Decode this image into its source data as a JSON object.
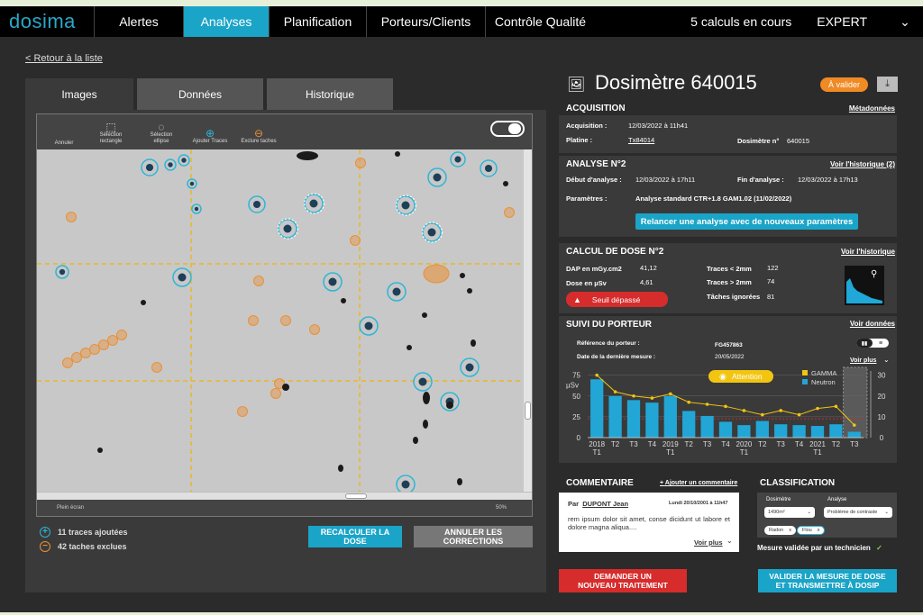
{
  "nav": {
    "logo": "dosima",
    "items": [
      "Alertes",
      "Analyses",
      "Planification",
      "Porteurs/Clients",
      "Contrôle Qualité"
    ],
    "active": "Analyses",
    "calcs": "5 calculs en cours",
    "user": "EXPERT"
  },
  "back_link": "< Retour à la liste",
  "tabs": [
    "Images",
    "Données",
    "Historique"
  ],
  "viewer": {
    "tools": [
      {
        "label": "Annuler",
        "icon": "undo-icon"
      },
      {
        "label": "Sélection rectangle",
        "icon": "rect-select-icon"
      },
      {
        "label": "Sélection ellipse",
        "icon": "ellipse-select-icon"
      },
      {
        "label": "Ajouter Traces",
        "icon": "add-circle-icon"
      },
      {
        "label": "Exclure taches",
        "icon": "remove-circle-icon"
      }
    ],
    "footer_left": "Plein écran",
    "footer_right": "50%"
  },
  "legend": {
    "added": "11 traces ajoutées",
    "excluded": "42 taches exclues"
  },
  "buttons": {
    "recalc": "RECALCULER LA DOSE",
    "cancel": "ANNULER LES CORRECTIONS",
    "request": "DEMANDER UN NOUVEAU TRAITEMENT",
    "validate": "VALIDER LA MESURE DE DOSE ET TRANSMETTRE À DOSIP"
  },
  "header": {
    "title": "Dosimètre 640015",
    "badge": "À valider",
    "download_icon": "download-icon"
  },
  "acquisition": {
    "title": "ACQUISITION",
    "link": "Métadonnées",
    "acq_label": "Acquisition :",
    "acq_value": "12/03/2022 à 11h41",
    "platine_label": "Platine :",
    "platine_value": "Tx84014",
    "dosi_label": "Dosimètre n°",
    "dosi_value": "640015"
  },
  "analyse": {
    "title": "ANALYSE N°2",
    "link": "Voir  l'historique (2)",
    "debut_label": "Début d'analyse :",
    "debut_value": "12/03/2022 à 17h11",
    "fin_label": "Fin d'analyse :",
    "fin_value": "12/03/2022 à 17h13",
    "param_label": "Paramètres :",
    "param_value": "Analyse standard CTR+1.8 GAM1.02 (11/02/2022)",
    "relaunch": "Relancer une analyse avec de nouveaux paramètres"
  },
  "calcul": {
    "title": "CALCUL DE DOSE N°2",
    "link": "Voir l'historique",
    "dap_label": "DAP en mGy.cm2",
    "dap_value": "41,12",
    "dose_label": "Dose en µSv",
    "dose_value": "4,61",
    "t2_label": "Traces < 2mm",
    "t2_value": "122",
    "t2b_label": "Traces > 2mm",
    "t2b_value": "74",
    "ign_label": "Tâches ignorées",
    "ign_value": "81",
    "alert": "Seuil dépassé"
  },
  "suivi": {
    "title": "SUIVI DU PORTEUR",
    "link": "Voir données",
    "ref_label": "Référence du porteur :",
    "ref_value": "FG457863",
    "date_label": "Date de la dernière mesure :",
    "date_value": "20/05/2022",
    "voir_plus": "Voir plus",
    "attention": "Attention"
  },
  "chart_data": {
    "type": "bar",
    "categories": [
      "2018 T1",
      "T2",
      "T3",
      "T4",
      "2019 T1",
      "T2",
      "T3",
      "T4",
      "2020 T1",
      "T2",
      "T3",
      "T4",
      "2021 T1",
      "T2",
      "T3"
    ],
    "series": [
      {
        "name": "Neutron",
        "type": "bar",
        "axis": "left",
        "color": "#22a6d6",
        "values": [
          70,
          50,
          45,
          42,
          50,
          32,
          26,
          19,
          15,
          20,
          16,
          15,
          14,
          16,
          7
        ]
      },
      {
        "name": "GAMMA",
        "type": "line",
        "axis": "right",
        "color": "#f2c511",
        "values": [
          30,
          22,
          20,
          19,
          21,
          17,
          16,
          15,
          13,
          11,
          13,
          11,
          14,
          15,
          6
        ]
      }
    ],
    "ylabel": "µSv",
    "yticks_left": [
      0,
      25,
      50,
      75
    ],
    "yticks_right": [
      0,
      10,
      20,
      30
    ],
    "ylim_left": [
      0,
      80
    ],
    "ylim_right": [
      0,
      32
    ],
    "threshold": 22.5
  },
  "commentaire": {
    "title": "COMMENTAIRE",
    "add_link": "+ Ajouter un commentaire",
    "by": "Par",
    "author": "DUPONT Jean",
    "date": "Lundi 20/10/2001 à 11h47",
    "text": "rem ipsum dolor sit amet, conse dicidunt ut labore et dolore magna aliqua....",
    "more": "Voir plus"
  },
  "classification": {
    "title": "CLASSIFICATION",
    "dosi_label": "Dosimètre",
    "analyse_label": "Analyse",
    "dosi_value": "1490m²",
    "analyse_value": "Problème de contraste",
    "chips": [
      "Radon",
      "Flou"
    ],
    "validated": "Mesure validée par un technicien"
  }
}
